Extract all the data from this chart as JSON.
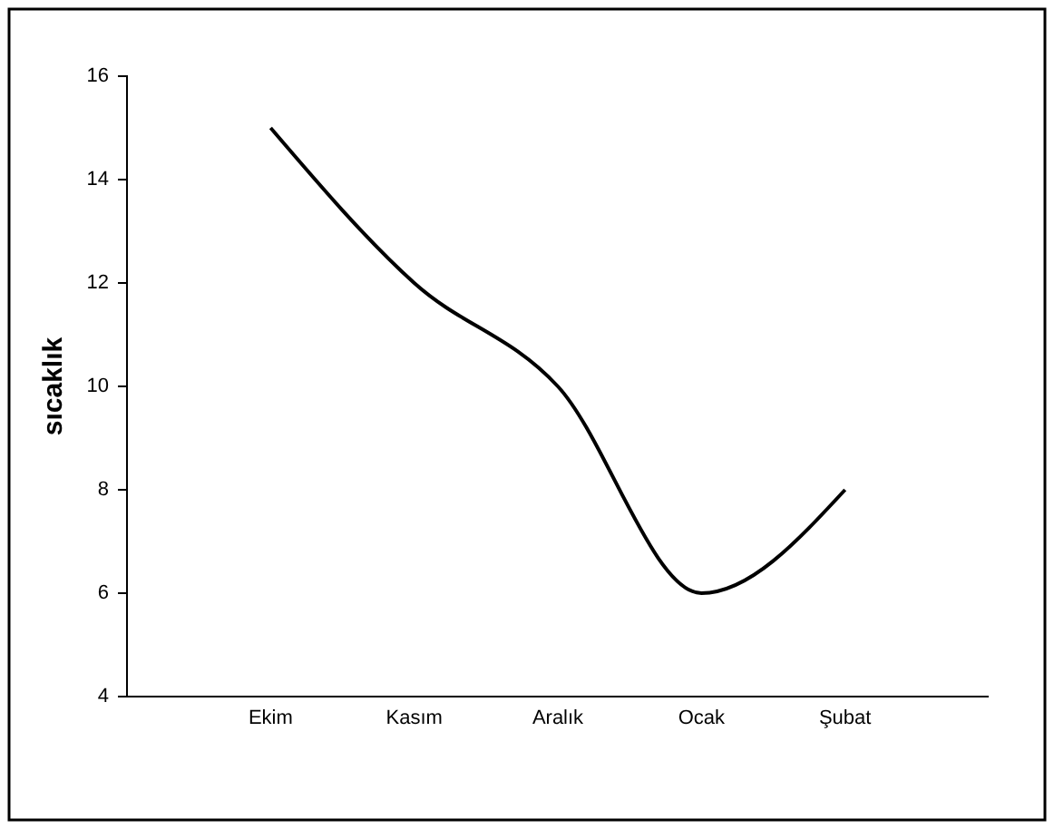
{
  "chart_data": {
    "type": "line",
    "ylabel": "sıcaklık",
    "categories": [
      "Ekim",
      "Kasım",
      "Aralık",
      "Ocak",
      "Şubat"
    ],
    "series": [
      {
        "color": "#000000",
        "values": [
          15,
          12,
          10,
          6,
          8
        ]
      }
    ],
    "ylim": [
      4,
      16
    ],
    "yticks": [
      4,
      6,
      8,
      10,
      12,
      14,
      16
    ],
    "grid": false,
    "marker": "none",
    "line_style": "solid"
  }
}
